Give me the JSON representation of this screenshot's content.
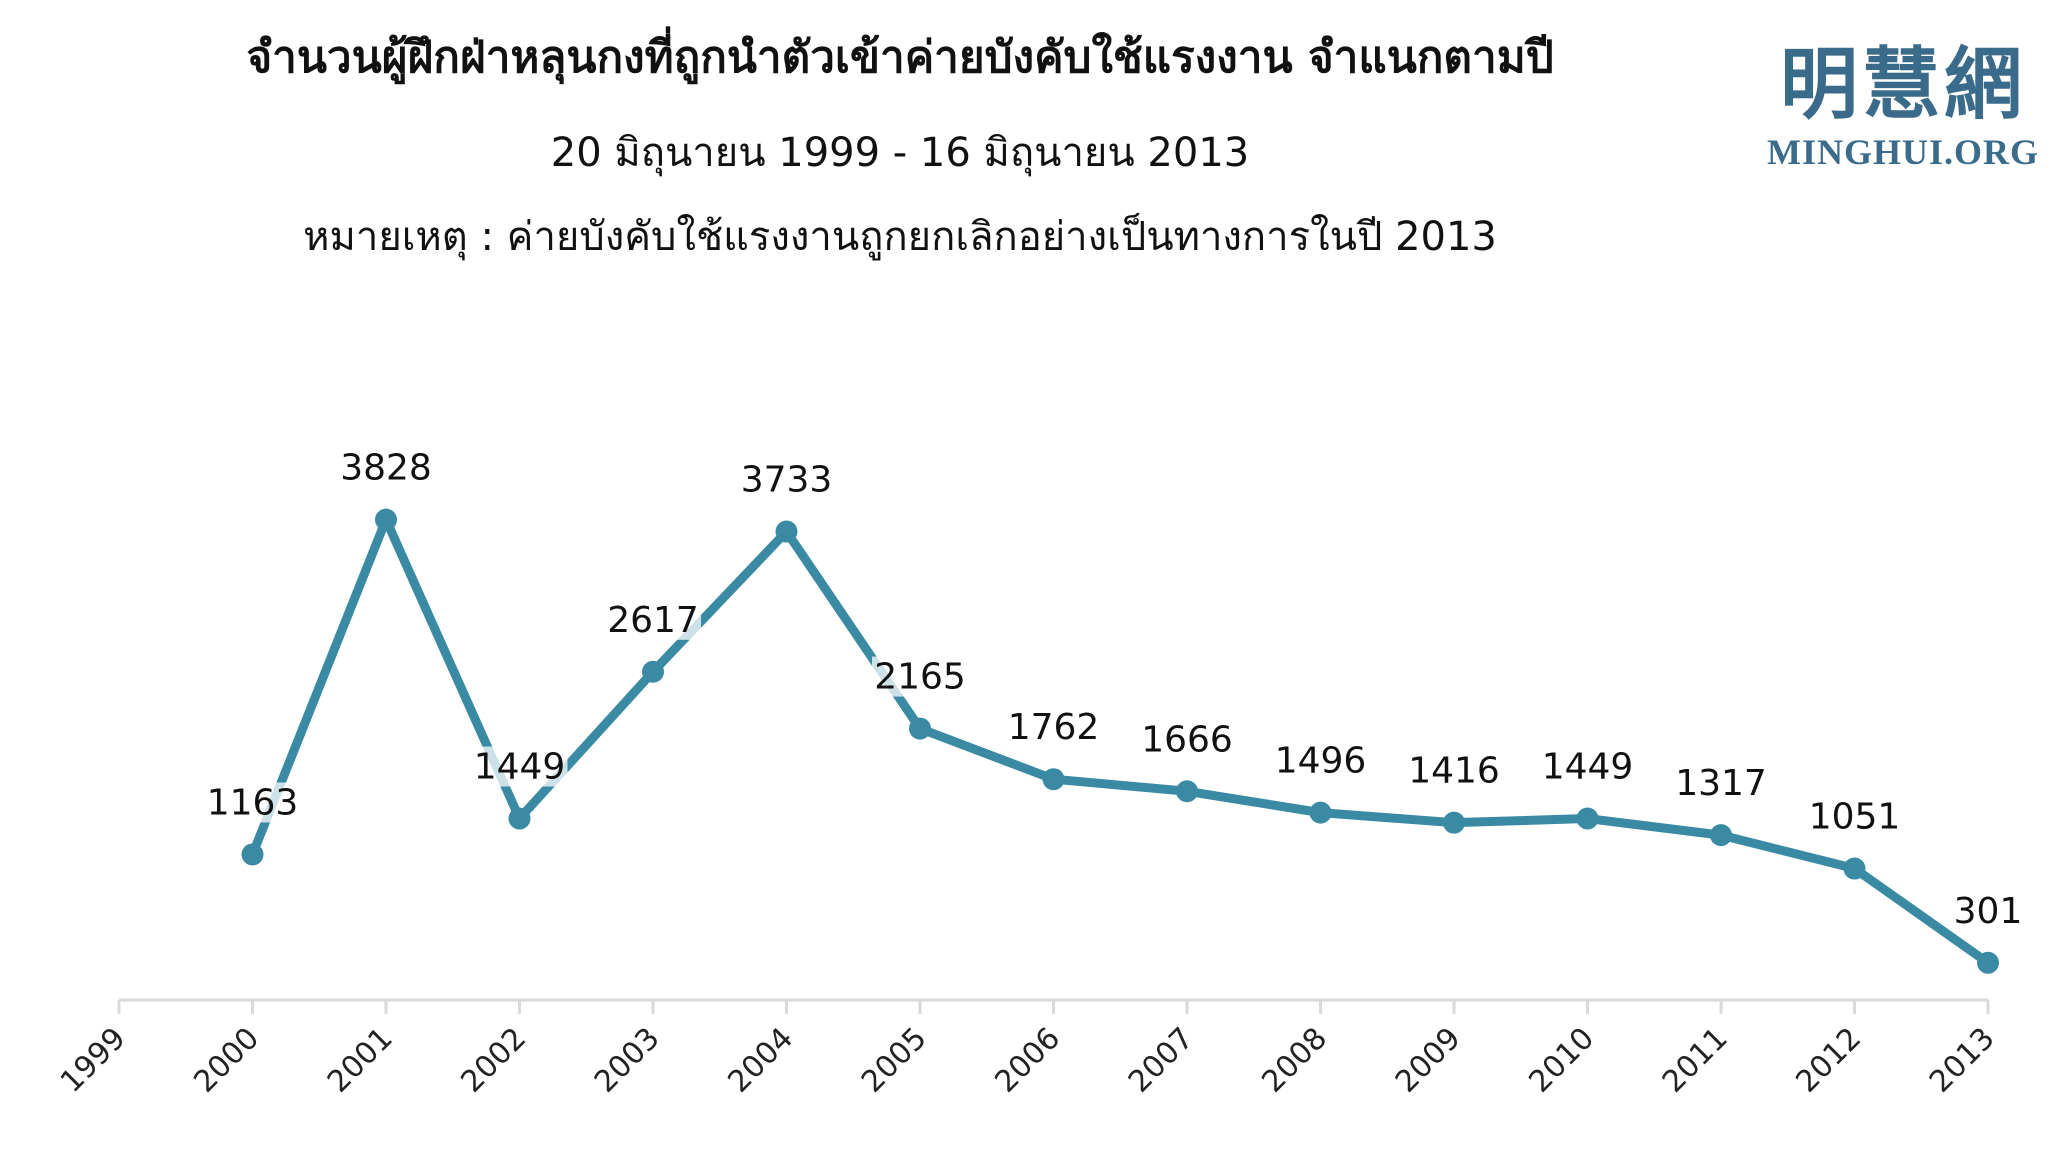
{
  "header": {
    "title": "จำนวนผู้ฝึกฝ่าหลุนกงที่ถูกนำตัวเข้าค่ายบังคับใช้แรงงาน จำแนกตามปี",
    "subtitle": "20 มิถุนายน 1999 - 16 มิถุนายน 2013",
    "note": "หมายเหตุ : ค่ายบังคับใช้แรงงานถูกยกเลิกอย่างเป็นทางการในปี 2013"
  },
  "logo": {
    "chinese": "明慧網",
    "english": "MINGHUI.ORG",
    "color": "#3b6b8a"
  },
  "chart_data": {
    "type": "line",
    "title": "จำนวนผู้ฝึกฝ่าหลุนกงที่ถูกนำตัวเข้าค่ายบังคับใช้แรงงาน จำแนกตามปี",
    "subtitle": "20 มิถุนายน 1999 - 16 มิถุนายน 2013",
    "categories": [
      "1999",
      "2000",
      "2001",
      "2002",
      "2003",
      "2004",
      "2005",
      "2006",
      "2007",
      "2008",
      "2009",
      "2010",
      "2011",
      "2012",
      "2013"
    ],
    "series": [
      {
        "values": [
          null,
          1163,
          3828,
          1449,
          2617,
          3733,
          2165,
          1762,
          1666,
          1496,
          1416,
          1449,
          1317,
          1051,
          301
        ]
      }
    ],
    "ylim": [
      0,
      4000
    ],
    "grid": false,
    "legend": "none",
    "line_color": "#3a8aa3",
    "axis_color": "#d9d9d9",
    "xlabel": "",
    "ylabel": ""
  }
}
